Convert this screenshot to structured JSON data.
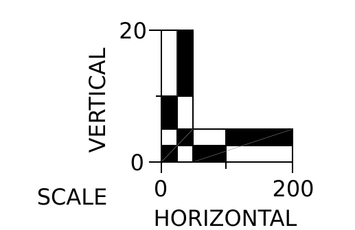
{
  "figure": {
    "title": "SCALE",
    "vertical_axis": {
      "label": "VERTICAL",
      "ticks": [
        "20",
        "0"
      ]
    },
    "horizontal_axis": {
      "label": "HORIZONTAL",
      "ticks": [
        "0",
        "200"
      ]
    }
  },
  "colors": {
    "ink": "#000000",
    "paper": "#ffffff"
  }
}
